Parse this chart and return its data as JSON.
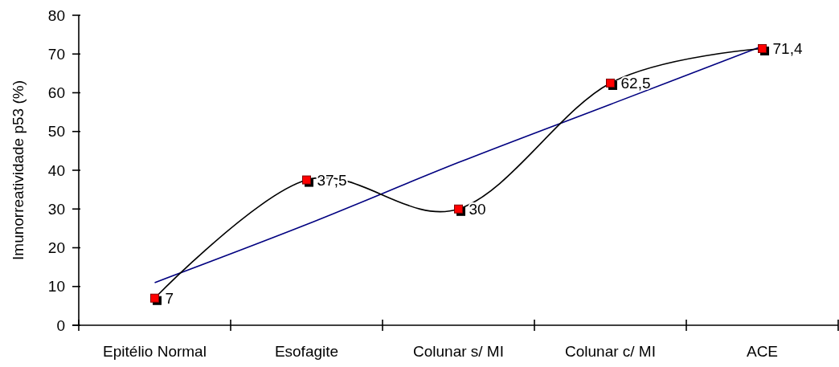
{
  "chart_data": {
    "type": "line",
    "ylabel": "Imunorreatividade p53 (%)",
    "categories": [
      "Epitélio Normal",
      "Esofagite",
      "Colunar s/ MI",
      "Colunar c/ MI",
      "ACE"
    ],
    "ylim": [
      0,
      80
    ],
    "yticks": [
      0,
      10,
      20,
      30,
      40,
      50,
      60,
      70,
      80
    ],
    "series": [
      {
        "color": "#000000",
        "colors": [
          "#ff0000",
          "#ff0000",
          "#ff0000",
          "#ff0000",
          "#ff0000"
        ],
        "marker": "square",
        "values": [
          7,
          37.5,
          30,
          62.5,
          71.4
        ],
        "value_labels": [
          "7",
          "37,5",
          "30",
          "62,5",
          "71,4"
        ]
      },
      {
        "color": "#000080",
        "marker": "none",
        "values": [
          11,
          26,
          42,
          57,
          72
        ]
      }
    ]
  }
}
